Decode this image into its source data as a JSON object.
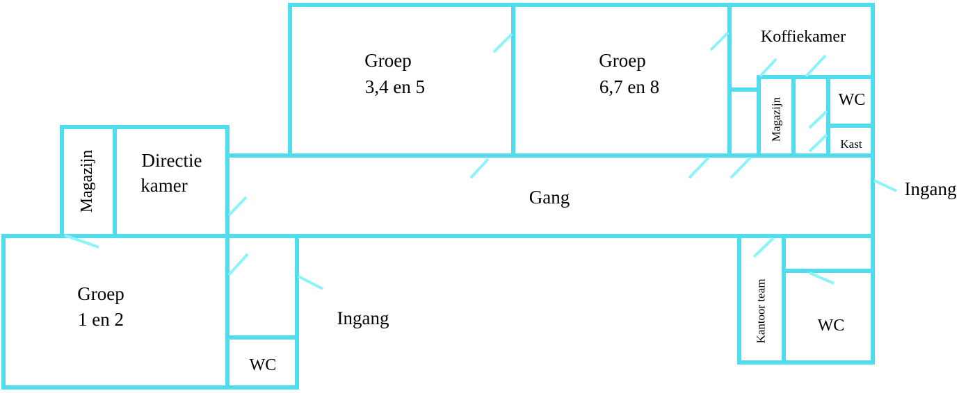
{
  "colors": {
    "wall": "#4fdcec",
    "door": "#8af3fb",
    "background": "#ffffff",
    "text": "#000000"
  },
  "rooms": {
    "groep_345": {
      "line1": "Groep",
      "line2": "3,4 en 5"
    },
    "groep_678": {
      "line1": "Groep",
      "line2": "6,7 en 8"
    },
    "koffiekamer": "Koffiekamer",
    "magazijn_right": "Magazijn",
    "wc_top_right": "WC",
    "kast": "Kast",
    "magazijn_left": "Magazijn",
    "directiekamer": {
      "line1": "Directie",
      "line2": "kamer"
    },
    "gang": "Gang",
    "groep_12": {
      "line1": "Groep",
      "line2": "1 en 2"
    },
    "wc_bottom_left": "WC",
    "kantoor_team": "Kantoor team",
    "wc_bottom_right": "WC"
  },
  "entrances": {
    "right": "Ingang",
    "bottom": "Ingang"
  }
}
